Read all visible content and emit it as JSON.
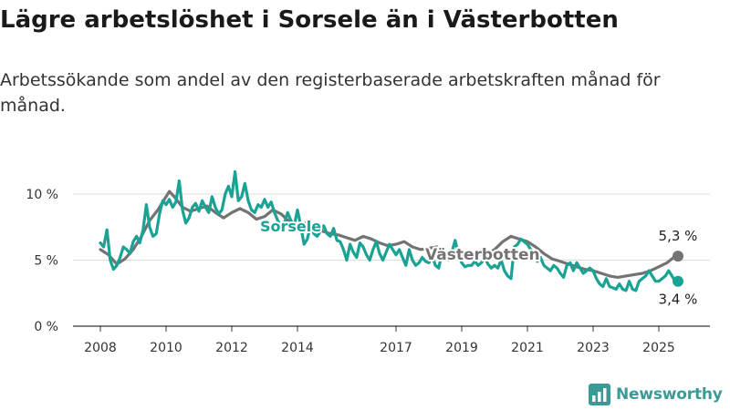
{
  "title": "Lägre arbetslöshet i Sorsele än i Västerbotten",
  "subtitle": "Arbetssökande som andel av den registerbaserade arbetskraften månad för månad.",
  "brand": "Newsworthy",
  "colors": {
    "sorsele": "#1aa394",
    "vasterbotten": "#737373",
    "grid": "#dddddd",
    "axis": "#333333",
    "brand": "#3a9a95"
  },
  "chart_data": {
    "type": "line",
    "xlim": [
      2008,
      2026
    ],
    "ylim": [
      0,
      10
    ],
    "y_ticks": [
      0,
      5,
      10
    ],
    "y_tick_labels": [
      "0 %",
      "5 %",
      "10 %"
    ],
    "x_ticks": [
      2008,
      2010,
      2012,
      2014,
      2017,
      2019,
      2021,
      2023,
      2025
    ],
    "x_tick_labels": [
      "2008",
      "2010",
      "2012",
      "2014",
      "2017",
      "2019",
      "2021",
      "2023",
      "2025"
    ],
    "grid": true,
    "series": [
      {
        "name": "Sorsele",
        "color": "#1aa394",
        "end_label": "3,4 %",
        "points": [
          [
            2008.0,
            6.3
          ],
          [
            2008.1,
            6.0
          ],
          [
            2008.2,
            7.3
          ],
          [
            2008.3,
            5.0
          ],
          [
            2008.4,
            4.3
          ],
          [
            2008.5,
            4.6
          ],
          [
            2008.6,
            5.2
          ],
          [
            2008.7,
            6.0
          ],
          [
            2008.8,
            5.8
          ],
          [
            2008.9,
            5.5
          ],
          [
            2009.0,
            6.4
          ],
          [
            2009.1,
            6.8
          ],
          [
            2009.2,
            6.3
          ],
          [
            2009.3,
            7.3
          ],
          [
            2009.4,
            9.2
          ],
          [
            2009.5,
            7.5
          ],
          [
            2009.6,
            6.8
          ],
          [
            2009.7,
            7.0
          ],
          [
            2009.8,
            8.5
          ],
          [
            2009.9,
            9.5
          ],
          [
            2010.0,
            9.2
          ],
          [
            2010.1,
            9.6
          ],
          [
            2010.2,
            9.0
          ],
          [
            2010.3,
            9.4
          ],
          [
            2010.4,
            11.0
          ],
          [
            2010.5,
            8.8
          ],
          [
            2010.6,
            7.8
          ],
          [
            2010.7,
            8.2
          ],
          [
            2010.8,
            9.0
          ],
          [
            2010.9,
            9.3
          ],
          [
            2011.0,
            8.7
          ],
          [
            2011.1,
            9.5
          ],
          [
            2011.2,
            9.0
          ],
          [
            2011.3,
            8.6
          ],
          [
            2011.4,
            9.8
          ],
          [
            2011.5,
            9.0
          ],
          [
            2011.6,
            8.5
          ],
          [
            2011.7,
            8.8
          ],
          [
            2011.8,
            10.0
          ],
          [
            2011.9,
            10.6
          ],
          [
            2012.0,
            9.8
          ],
          [
            2012.1,
            11.7
          ],
          [
            2012.2,
            9.5
          ],
          [
            2012.3,
            9.8
          ],
          [
            2012.4,
            10.8
          ],
          [
            2012.5,
            9.5
          ],
          [
            2012.6,
            8.8
          ],
          [
            2012.7,
            8.6
          ],
          [
            2012.8,
            9.2
          ],
          [
            2012.9,
            9.0
          ],
          [
            2013.0,
            9.6
          ],
          [
            2013.1,
            9.0
          ],
          [
            2013.2,
            9.4
          ],
          [
            2013.3,
            8.6
          ],
          [
            2013.4,
            8.0
          ],
          [
            2013.5,
            7.6
          ],
          [
            2013.6,
            7.8
          ],
          [
            2013.7,
            8.6
          ],
          [
            2013.8,
            8.0
          ],
          [
            2013.9,
            7.6
          ],
          [
            2014.0,
            8.8
          ],
          [
            2014.1,
            7.6
          ],
          [
            2014.2,
            6.2
          ],
          [
            2014.3,
            6.6
          ],
          [
            2014.4,
            7.6
          ],
          [
            2014.5,
            7.0
          ],
          [
            2014.6,
            6.8
          ],
          [
            2014.7,
            7.2
          ],
          [
            2014.8,
            7.6
          ],
          [
            2014.9,
            7.0
          ],
          [
            2015.0,
            6.8
          ],
          [
            2015.1,
            7.4
          ],
          [
            2015.2,
            6.5
          ],
          [
            2015.3,
            6.4
          ],
          [
            2015.4,
            5.8
          ],
          [
            2015.5,
            5.0
          ],
          [
            2015.6,
            6.2
          ],
          [
            2015.7,
            5.6
          ],
          [
            2015.8,
            5.2
          ],
          [
            2015.9,
            6.3
          ],
          [
            2016.0,
            6.0
          ],
          [
            2016.1,
            5.4
          ],
          [
            2016.2,
            5.0
          ],
          [
            2016.3,
            5.8
          ],
          [
            2016.4,
            6.4
          ],
          [
            2016.5,
            5.5
          ],
          [
            2016.6,
            5.0
          ],
          [
            2016.7,
            5.6
          ],
          [
            2016.8,
            6.2
          ],
          [
            2016.9,
            5.8
          ],
          [
            2017.0,
            5.4
          ],
          [
            2017.1,
            5.8
          ],
          [
            2017.2,
            5.2
          ],
          [
            2017.3,
            4.6
          ],
          [
            2017.4,
            5.8
          ],
          [
            2017.5,
            5.0
          ],
          [
            2017.6,
            4.6
          ],
          [
            2017.7,
            4.8
          ],
          [
            2017.8,
            5.2
          ],
          [
            2017.9,
            4.9
          ],
          [
            2018.0,
            4.8
          ],
          [
            2018.1,
            5.3
          ],
          [
            2018.2,
            4.6
          ],
          [
            2018.3,
            4.4
          ],
          [
            2018.4,
            5.6
          ],
          [
            2018.5,
            5.2
          ],
          [
            2018.6,
            5.0
          ],
          [
            2018.7,
            5.6
          ],
          [
            2018.8,
            6.5
          ],
          [
            2018.9,
            5.4
          ],
          [
            2019.0,
            4.8
          ],
          [
            2019.1,
            4.5
          ],
          [
            2019.2,
            4.6
          ],
          [
            2019.3,
            4.6
          ],
          [
            2019.4,
            4.9
          ],
          [
            2019.5,
            4.6
          ],
          [
            2019.6,
            4.8
          ],
          [
            2019.7,
            5.2
          ],
          [
            2019.8,
            4.7
          ],
          [
            2019.9,
            4.4
          ],
          [
            2020.0,
            4.6
          ],
          [
            2020.1,
            4.4
          ],
          [
            2020.2,
            5.0
          ],
          [
            2020.3,
            4.2
          ],
          [
            2020.4,
            3.8
          ],
          [
            2020.5,
            3.6
          ],
          [
            2020.6,
            6.0
          ],
          [
            2020.7,
            6.2
          ],
          [
            2020.8,
            6.6
          ],
          [
            2020.9,
            6.4
          ],
          [
            2021.0,
            6.2
          ],
          [
            2021.1,
            5.8
          ],
          [
            2021.2,
            5.6
          ],
          [
            2021.3,
            4.9
          ],
          [
            2021.4,
            5.2
          ],
          [
            2021.5,
            4.6
          ],
          [
            2021.6,
            4.4
          ],
          [
            2021.7,
            4.2
          ],
          [
            2021.8,
            4.6
          ],
          [
            2021.9,
            4.4
          ],
          [
            2022.0,
            4.0
          ],
          [
            2022.1,
            3.7
          ],
          [
            2022.2,
            4.6
          ],
          [
            2022.3,
            4.8
          ],
          [
            2022.4,
            4.2
          ],
          [
            2022.5,
            4.8
          ],
          [
            2022.6,
            4.4
          ],
          [
            2022.7,
            4.0
          ],
          [
            2022.8,
            4.2
          ],
          [
            2022.9,
            4.4
          ],
          [
            2023.0,
            4.2
          ],
          [
            2023.1,
            3.6
          ],
          [
            2023.2,
            3.2
          ],
          [
            2023.3,
            3.0
          ],
          [
            2023.4,
            3.6
          ],
          [
            2023.5,
            3.0
          ],
          [
            2023.6,
            2.9
          ],
          [
            2023.7,
            2.8
          ],
          [
            2023.8,
            3.2
          ],
          [
            2023.9,
            2.8
          ],
          [
            2024.0,
            2.7
          ],
          [
            2024.1,
            3.4
          ],
          [
            2024.2,
            2.8
          ],
          [
            2024.3,
            2.7
          ],
          [
            2024.4,
            3.4
          ],
          [
            2024.5,
            3.6
          ],
          [
            2024.6,
            3.8
          ],
          [
            2024.7,
            4.2
          ],
          [
            2024.8,
            3.8
          ],
          [
            2024.9,
            3.4
          ],
          [
            2025.0,
            3.4
          ],
          [
            2025.1,
            3.6
          ],
          [
            2025.2,
            3.8
          ],
          [
            2025.3,
            4.2
          ],
          [
            2025.4,
            3.8
          ],
          [
            2025.5,
            3.4
          ]
        ]
      },
      {
        "name": "Västerbotten",
        "color": "#737373",
        "end_label": "5,3 %",
        "points": [
          [
            2008.0,
            5.8
          ],
          [
            2008.25,
            5.4
          ],
          [
            2008.5,
            4.7
          ],
          [
            2008.75,
            5.1
          ],
          [
            2009.0,
            5.8
          ],
          [
            2009.25,
            6.8
          ],
          [
            2009.5,
            8.0
          ],
          [
            2009.75,
            8.8
          ],
          [
            2010.0,
            9.8
          ],
          [
            2010.1,
            10.2
          ],
          [
            2010.25,
            9.8
          ],
          [
            2010.5,
            9.0
          ],
          [
            2010.75,
            8.7
          ],
          [
            2011.0,
            8.9
          ],
          [
            2011.25,
            9.1
          ],
          [
            2011.5,
            8.6
          ],
          [
            2011.75,
            8.2
          ],
          [
            2012.0,
            8.6
          ],
          [
            2012.25,
            8.9
          ],
          [
            2012.5,
            8.6
          ],
          [
            2012.75,
            8.1
          ],
          [
            2013.0,
            8.3
          ],
          [
            2013.25,
            8.8
          ],
          [
            2013.5,
            8.5
          ],
          [
            2013.75,
            7.9
          ],
          [
            2014.0,
            7.6
          ],
          [
            2014.25,
            7.8
          ],
          [
            2014.5,
            7.6
          ],
          [
            2014.75,
            7.2
          ],
          [
            2015.0,
            7.0
          ],
          [
            2015.25,
            6.9
          ],
          [
            2015.5,
            6.7
          ],
          [
            2015.75,
            6.5
          ],
          [
            2016.0,
            6.8
          ],
          [
            2016.25,
            6.6
          ],
          [
            2016.5,
            6.3
          ],
          [
            2016.75,
            6.1
          ],
          [
            2017.0,
            6.2
          ],
          [
            2017.25,
            6.4
          ],
          [
            2017.5,
            6.0
          ],
          [
            2017.75,
            5.8
          ],
          [
            2018.0,
            5.9
          ],
          [
            2018.25,
            6.0
          ],
          [
            2018.5,
            5.6
          ],
          [
            2018.75,
            5.4
          ],
          [
            2019.0,
            5.4
          ],
          [
            2019.25,
            5.6
          ],
          [
            2019.5,
            5.5
          ],
          [
            2019.75,
            5.4
          ],
          [
            2020.0,
            5.8
          ],
          [
            2020.25,
            6.4
          ],
          [
            2020.5,
            6.8
          ],
          [
            2020.75,
            6.6
          ],
          [
            2021.0,
            6.4
          ],
          [
            2021.25,
            6.0
          ],
          [
            2021.5,
            5.5
          ],
          [
            2021.75,
            5.1
          ],
          [
            2022.0,
            4.9
          ],
          [
            2022.25,
            4.7
          ],
          [
            2022.5,
            4.5
          ],
          [
            2022.75,
            4.3
          ],
          [
            2023.0,
            4.2
          ],
          [
            2023.25,
            4.0
          ],
          [
            2023.5,
            3.8
          ],
          [
            2023.75,
            3.7
          ],
          [
            2024.0,
            3.8
          ],
          [
            2024.25,
            3.9
          ],
          [
            2024.5,
            4.0
          ],
          [
            2024.75,
            4.2
          ],
          [
            2025.0,
            4.5
          ],
          [
            2025.25,
            4.8
          ],
          [
            2025.5,
            5.3
          ]
        ]
      }
    ],
    "annotations": [
      {
        "text": "Sorsele",
        "series": "Sorsele"
      },
      {
        "text": "Västerbotten",
        "series": "Västerbotten"
      }
    ]
  }
}
